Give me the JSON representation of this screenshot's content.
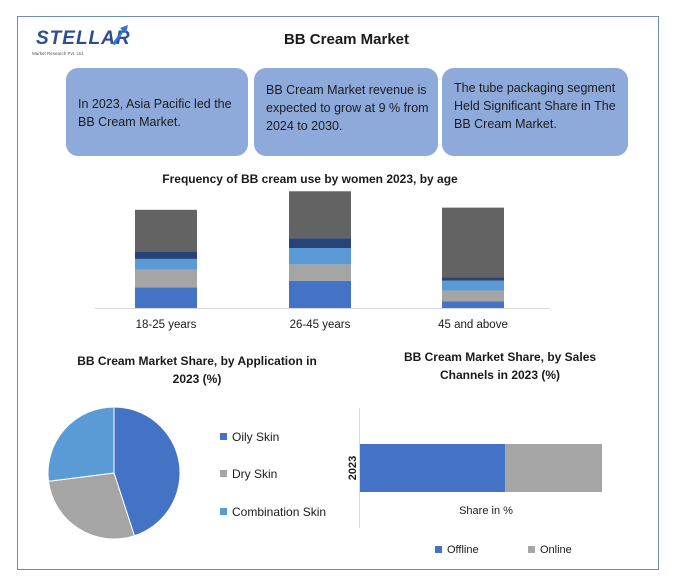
{
  "logo": {
    "name": "STELLAR",
    "tagline": "Market Research Pvt. Ltd."
  },
  "title": "BB Cream Market",
  "cards": [
    {
      "text": "In 2023, Asia Pacific led the BB Cream Market."
    },
    {
      "text": "BB Cream Market revenue is expected to grow at 9 % from 2024 to 2030."
    },
    {
      "text": "The tube packaging segment Held Significant Share in The BB Cream Market."
    }
  ],
  "colors": {
    "card": "#8eaadb",
    "frame": "#6f8fb0",
    "blue": "#4472c4",
    "gray": "#a5a5a5",
    "light_blue": "#5b9bd5",
    "dark_navy": "#264478",
    "dark_gray": "#636363"
  },
  "chart_data": [
    {
      "type": "bar",
      "stacked": true,
      "title": "Frequency of BB cream use by women 2023, by age",
      "categories": [
        "18-25 years",
        "26-45 years",
        "45 and above"
      ],
      "series": [
        {
          "values": [
            19,
            25,
            6
          ],
          "color": "#4472c4"
        },
        {
          "values": [
            16,
            15,
            10
          ],
          "color": "#a5a5a5"
        },
        {
          "values": [
            10,
            15,
            9
          ],
          "color": "#5b9bd5"
        },
        {
          "values": [
            7,
            9,
            3
          ],
          "color": "#264478"
        },
        {
          "values": [
            38,
            43,
            64
          ],
          "color": "#636363"
        }
      ],
      "ylim": [
        0,
        110
      ],
      "grid": false
    },
    {
      "type": "pie",
      "title": "BB Cream Market Share, by Application in 2023 (%)",
      "labels": [
        "Oily Skin",
        "Dry Skin",
        "Combination Skin"
      ],
      "values": [
        45,
        28,
        27
      ],
      "colors": [
        "#4472c4",
        "#a5a5a5",
        "#5b9bd5"
      ],
      "legend": "right"
    },
    {
      "type": "bar",
      "orientation": "horizontal",
      "stacked": true,
      "title": "BB Cream Market Share, by Sales Channels in 2023 (%)",
      "categories": [
        "2023"
      ],
      "xlabel": "Share in %",
      "series": [
        {
          "name": "Offline",
          "values": [
            60
          ],
          "color": "#4472c4"
        },
        {
          "name": "Online",
          "values": [
            40
          ],
          "color": "#a5a5a5"
        }
      ],
      "xlim": [
        0,
        100
      ],
      "legend": "bottom"
    }
  ]
}
